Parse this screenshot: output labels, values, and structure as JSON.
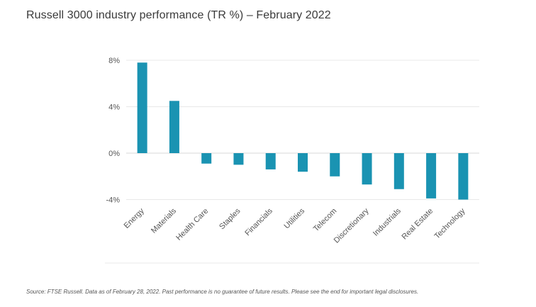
{
  "title": "Russell 3000 industry performance (TR %) – February 2022",
  "source": "Source: FTSE Russell. Data as of February 28, 2022. Past performance is no guarantee of future results. Please see the end for important legal disclosures.",
  "colors": {
    "bar": "#1a93b2",
    "grid": "#e8e8e8",
    "axis": "#d9d9d9",
    "text": "#555555"
  },
  "chart_data": {
    "type": "bar",
    "title": "Russell 3000 industry performance (TR %) – February 2022",
    "xlabel": "",
    "ylabel": "",
    "categories": [
      "Energy",
      "Materials",
      "Health Care",
      "Staples",
      "Financials",
      "Utilities",
      "Telecom",
      "Discretionary",
      "Industrials",
      "Real Estate",
      "Technology"
    ],
    "values": [
      7.8,
      4.5,
      -0.9,
      -1.0,
      -1.4,
      -1.6,
      -2.0,
      -2.7,
      -3.1,
      -3.9,
      -4.0
    ],
    "ylim": [
      -4,
      8
    ],
    "yticks": [
      8,
      4,
      0,
      -4
    ],
    "ytick_labels": [
      "8%",
      "4%",
      "0%",
      "-4%"
    ],
    "grid": true,
    "legend": "none"
  }
}
